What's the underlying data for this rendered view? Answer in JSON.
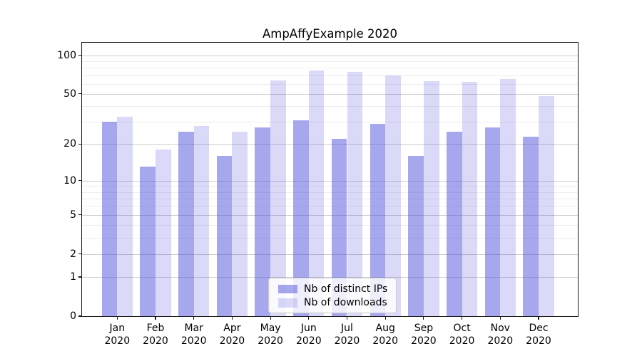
{
  "title": "AmpAffyExample 2020",
  "chart_data": {
    "type": "bar",
    "title": "AmpAffyExample 2020",
    "categories": [
      "Jan 2020",
      "Feb 2020",
      "Mar 2020",
      "Apr 2020",
      "May 2020",
      "Jun 2020",
      "Jul 2020",
      "Aug 2020",
      "Sep 2020",
      "Oct 2020",
      "Nov 2020",
      "Dec 2020"
    ],
    "months": [
      "Jan",
      "Feb",
      "Mar",
      "Apr",
      "May",
      "Jun",
      "Jul",
      "Aug",
      "Sep",
      "Oct",
      "Nov",
      "Dec"
    ],
    "year": "2020",
    "series": [
      {
        "key": "distinct-ips",
        "name": "Nb of distinct IPs",
        "color": "rgba(80,80,220,0.50)",
        "color_hex_on_white": "#a7a7ed",
        "values": [
          30,
          13,
          25,
          16,
          27,
          31,
          22,
          29,
          16,
          25,
          27,
          23
        ]
      },
      {
        "key": "downloads",
        "name": "Nb of downloads",
        "color": "rgba(80,80,220,0.21)",
        "color_hex_on_white": "#d9d9f7",
        "values": [
          33,
          18,
          28,
          25,
          64,
          76,
          74,
          70,
          63,
          62,
          65,
          48
        ]
      }
    ],
    "xlabel": "",
    "ylabel": "",
    "yscale": "log1p",
    "yticks": [
      0,
      1,
      2,
      5,
      10,
      20,
      50,
      100
    ],
    "yticks_minor": [
      3,
      4,
      6,
      7,
      8,
      9,
      30,
      40,
      60,
      70,
      80,
      90
    ],
    "ylim": [
      0,
      125
    ],
    "grid": true,
    "legend_position": "lower center"
  }
}
